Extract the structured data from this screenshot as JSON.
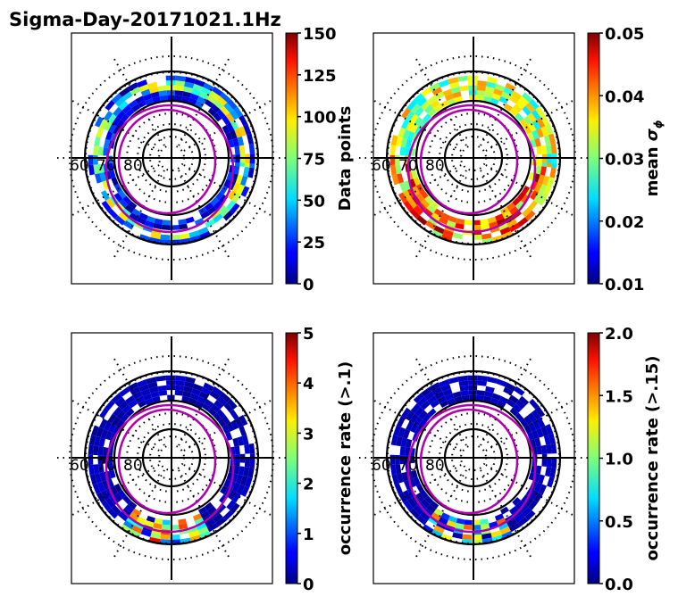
{
  "chart_data": {
    "type": "heatmap",
    "title": "Sigma-Day-20171021.1Hz",
    "colormap": "jet",
    "radial_labels": [
      "60",
      "70",
      "80"
    ],
    "panels": [
      {
        "name": "data-points",
        "colorbar_label": "Data points",
        "clim": [
          0,
          150
        ],
        "ticks": [
          "0",
          "25",
          "50",
          "75",
          "100",
          "125",
          "150"
        ]
      },
      {
        "name": "mean-sigma-phi",
        "colorbar_label": "mean σφ",
        "label_main": "mean ",
        "label_sym": "σ",
        "label_sub": "ϕ",
        "clim": [
          0.01,
          0.05
        ],
        "ticks": [
          "0.01",
          "0.02",
          "0.03",
          "0.04",
          "0.05"
        ]
      },
      {
        "name": "occurrence-rate-1",
        "colorbar_label": "occurrence rate (>.1)",
        "clim": [
          0,
          5
        ],
        "ticks": [
          "0",
          "1",
          "2",
          "3",
          "4",
          "5"
        ]
      },
      {
        "name": "occurrence-rate-15",
        "colorbar_label": "occurrence rate (>.15)",
        "clim": [
          0,
          2
        ],
        "ticks": [
          "0.0",
          "0.5",
          "1.0",
          "1.5",
          "2.0"
        ]
      }
    ],
    "colors": {
      "oval": "#b000b0",
      "grid": "#000000"
    }
  }
}
